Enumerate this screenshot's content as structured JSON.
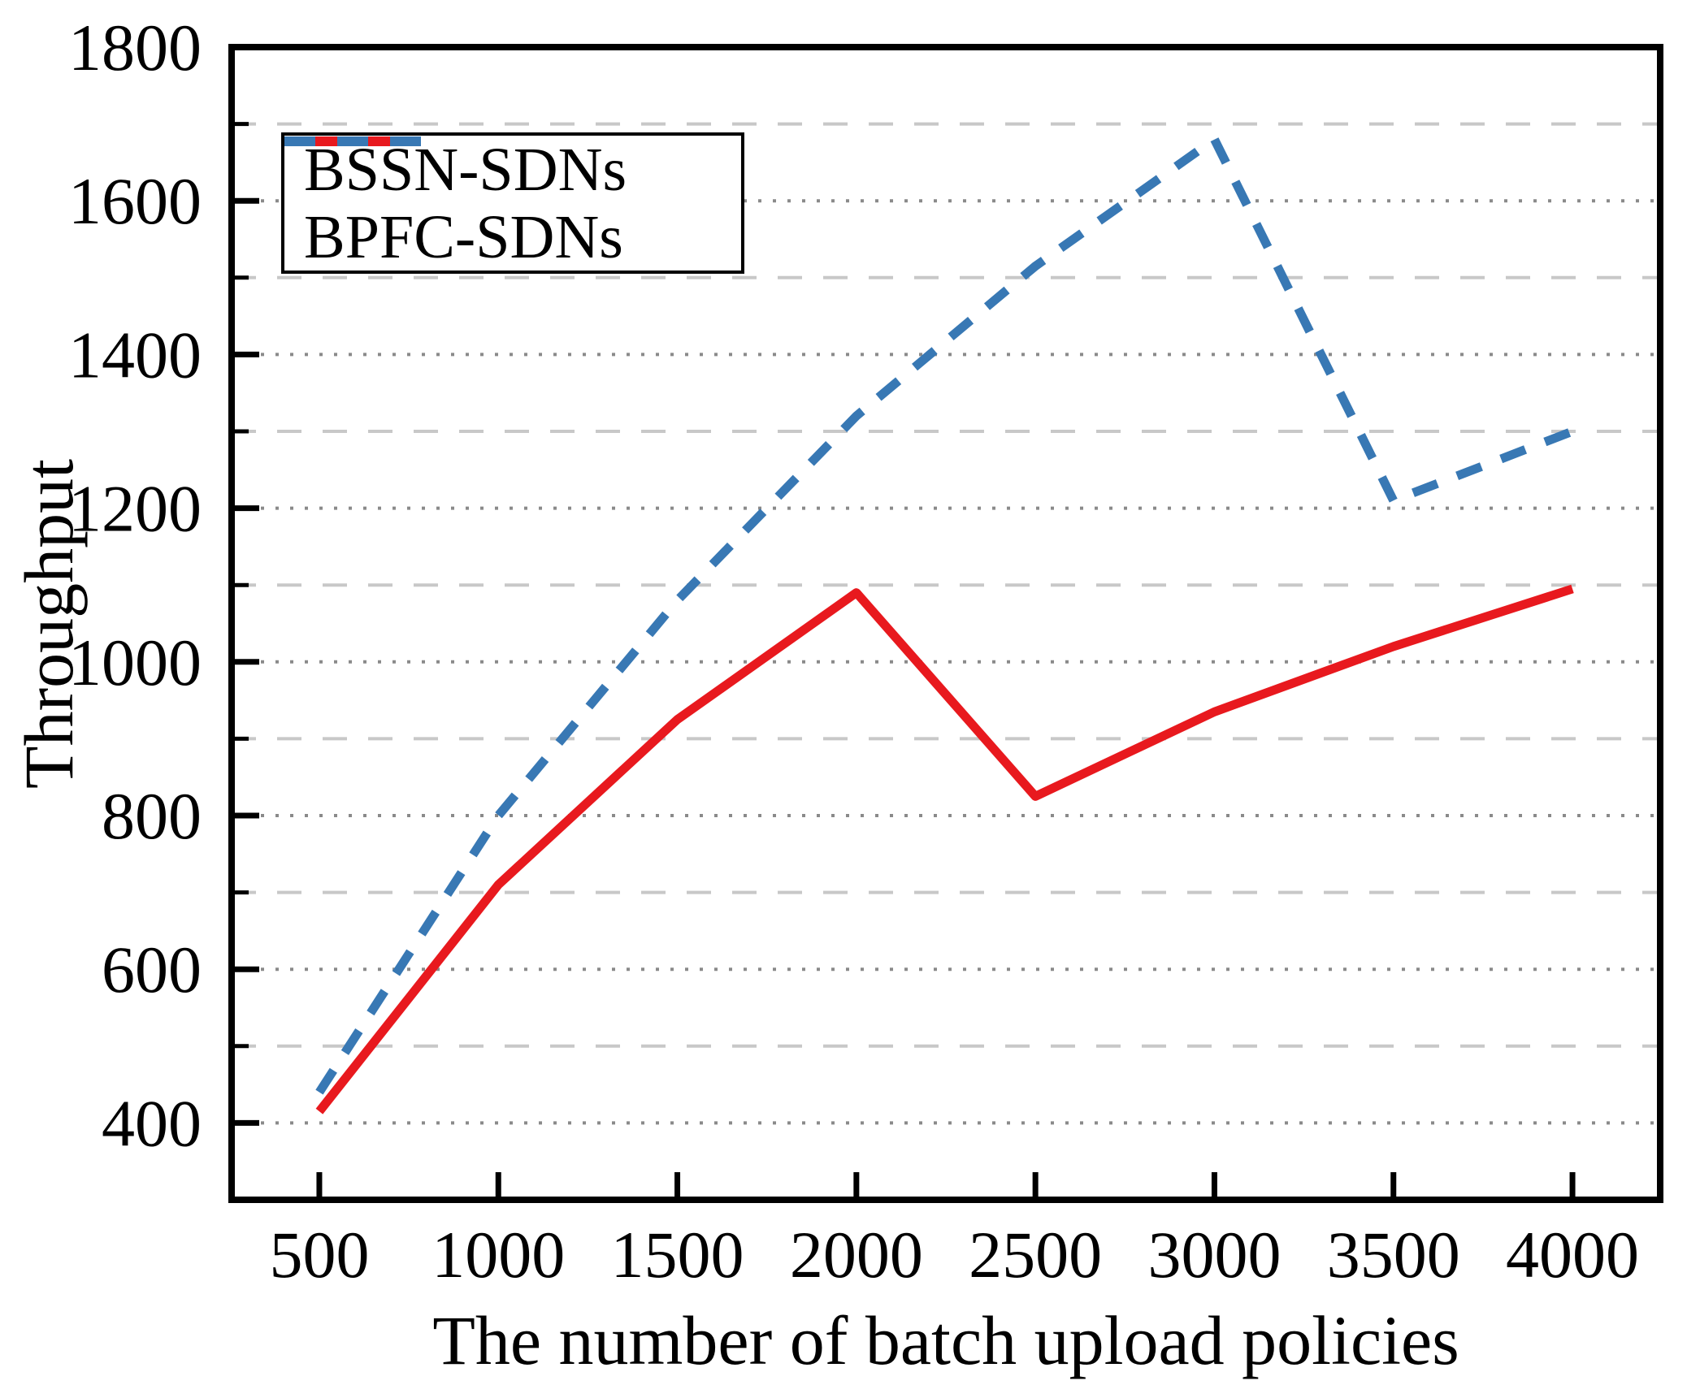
{
  "figure": {
    "background": "#ffffff"
  },
  "chart_data": {
    "type": "line",
    "title": "",
    "xlabel": "The number of batch upload policies",
    "ylabel": "Throughput",
    "x": [
      500,
      1000,
      1500,
      2000,
      2500,
      3000,
      3500,
      4000
    ],
    "series": [
      {
        "name": "BSSN-SDNs",
        "color": "#e8191e",
        "style": "solid",
        "values": [
          415,
          710,
          925,
          1090,
          825,
          935,
          1020,
          1095
        ]
      },
      {
        "name": "BPFC-SDNs",
        "color": "#3878b4",
        "style": "dashed",
        "values": [
          440,
          800,
          1080,
          1320,
          1515,
          1680,
          1210,
          1300
        ]
      }
    ],
    "x_ticks": [
      500,
      1000,
      1500,
      2000,
      2500,
      3000,
      3500,
      4000
    ],
    "y_ticks": [
      400,
      600,
      800,
      1000,
      1200,
      1400,
      1600,
      1800
    ],
    "y_minor_ticks": [
      500,
      700,
      900,
      1100,
      1300,
      1500,
      1700
    ],
    "xlim": [
      255,
      4245
    ],
    "ylim": [
      300,
      1800
    ],
    "grid": {
      "major_style": "dotted",
      "major_color": "#8a8a8a",
      "minor_style": "dashed",
      "minor_color": "#c8c8c8"
    },
    "legend": {
      "position": "top-left",
      "entries": [
        "BSSN-SDNs",
        "BPFC-SDNs"
      ]
    }
  }
}
